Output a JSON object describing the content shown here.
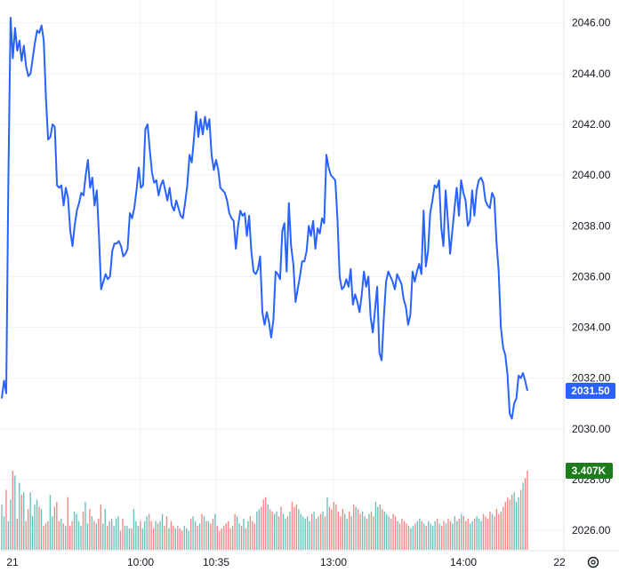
{
  "chart_data": {
    "type": "line",
    "title": "",
    "xlabel": "",
    "ylabel": "",
    "ylim": [
      2025.2,
      2046.9
    ],
    "y_ticks": [
      "2026.00",
      "2028.00",
      "2030.00",
      "2032.00",
      "2034.00",
      "2036.00",
      "2038.00",
      "2040.00",
      "2042.00",
      "2044.00",
      "2046.00"
    ],
    "x_ticks": [
      "21",
      "10:00",
      "10:35",
      "13:00",
      "14:00",
      "22"
    ],
    "grid": true,
    "price_series": {
      "color": "#2962ff",
      "values": [
        2031.2,
        2031.9,
        2031.4,
        2039.8,
        2046.2,
        2044.6,
        2045.8,
        2044.9,
        2045.3,
        2044.5,
        2045.1,
        2044.3,
        2043.9,
        2044.0,
        2044.6,
        2045.2,
        2045.7,
        2045.6,
        2045.9,
        2045.3,
        2043.0,
        2041.4,
        2041.5,
        2042.0,
        2041.9,
        2039.6,
        2039.5,
        2039.6,
        2038.8,
        2039.5,
        2039.1,
        2037.8,
        2037.2,
        2038.0,
        2038.6,
        2038.9,
        2039.3,
        2039.2,
        2040.0,
        2040.6,
        2039.5,
        2039.9,
        2038.8,
        2039.4,
        2037.6,
        2035.5,
        2035.8,
        2036.1,
        2035.9,
        2036.0,
        2037.0,
        2037.3,
        2037.3,
        2037.4,
        2037.2,
        2036.8,
        2036.9,
        2037.1,
        2038.5,
        2038.3,
        2038.7,
        2039.4,
        2040.3,
        2039.5,
        2039.6,
        2041.8,
        2042.0,
        2041.0,
        2040.1,
        2039.7,
        2039.8,
        2039.2,
        2039.6,
        2039.8,
        2039.4,
        2039.0,
        2039.5,
        2038.8,
        2038.6,
        2039.0,
        2038.7,
        2038.4,
        2038.3,
        2038.9,
        2039.6,
        2040.8,
        2040.5,
        2041.4,
        2042.5,
        2041.5,
        2042.2,
        2041.6,
        2042.3,
        2041.8,
        2042.2,
        2040.8,
        2040.2,
        2040.6,
        2040.2,
        2039.5,
        2039.4,
        2039.3,
        2039.0,
        2038.5,
        2038.3,
        2038.2,
        2037.1,
        2038.0,
        2038.6,
        2038.4,
        2038.5,
        2037.6,
        2038.4,
        2037.0,
        2036.2,
        2036.1,
        2036.3,
        2036.8,
        2034.6,
        2034.1,
        2034.6,
        2034.2,
        2033.6,
        2034.3,
        2036.2,
        2036.1,
        2035.9,
        2037.8,
        2038.1,
        2036.2,
        2038.9,
        2037.2,
        2036.5,
        2035.0,
        2035.5,
        2036.0,
        2036.6,
        2036.6,
        2037.0,
        2038.0,
        2037.6,
        2038.2,
        2037.1,
        2037.9,
        2037.7,
        2038.3,
        2038.1,
        2040.8,
        2040.3,
        2040.0,
        2039.9,
        2039.8,
        2038.3,
        2036.0,
        2035.5,
        2035.6,
        2035.9,
        2035.6,
        2036.3,
        2034.9,
        2035.3,
        2035.0,
        2034.6,
        2035.3,
        2036.2,
        2035.6,
        2036.0,
        2034.4,
        2033.8,
        2034.7,
        2035.6,
        2033.0,
        2032.7,
        2034.4,
        2035.8,
        2036.2,
        2036.0,
        2035.8,
        2035.5,
        2036.1,
        2035.9,
        2035.7,
        2035.1,
        2034.8,
        2034.1,
        2034.5,
        2036.2,
        2035.8,
        2036.2,
        2036.5,
        2036.1,
        2038.6,
        2036.4,
        2037.0,
        2038.5,
        2039.0,
        2039.6,
        2039.5,
        2039.8,
        2037.9,
        2037.2,
        2039.4,
        2038.2,
        2036.9,
        2037.8,
        2038.7,
        2039.5,
        2038.4,
        2039.8,
        2039.3,
        2039.0,
        2038.0,
        2038.2,
        2039.4,
        2038.4,
        2039.4,
        2039.8,
        2039.9,
        2039.7,
        2039.0,
        2038.8,
        2038.7,
        2039.3,
        2039.1,
        2037.4,
        2036.2,
        2034.0,
        2033.2,
        2032.9,
        2032.1,
        2030.6,
        2030.4,
        2031.0,
        2031.2,
        2032.1,
        2032.0,
        2032.2,
        2031.9,
        2031.5
      ]
    },
    "volume_series": {
      "up_color": "#26a69a",
      "down_color": "#ef5350",
      "max_label_value": 3407,
      "values": [
        19,
        14,
        25,
        12,
        21,
        33,
        31,
        13,
        28,
        23,
        24,
        12,
        17,
        24,
        14,
        19,
        21,
        18,
        17,
        10,
        11,
        12,
        23,
        14,
        18,
        20,
        12,
        13,
        11,
        10,
        22,
        10,
        12,
        16,
        15,
        12,
        10,
        16,
        20,
        11,
        17,
        14,
        12,
        11,
        13,
        19,
        11,
        17,
        10,
        12,
        13,
        10,
        13,
        14,
        8,
        13,
        10,
        10,
        9,
        9,
        17,
        12,
        10,
        12,
        9,
        12,
        14,
        15,
        12,
        9,
        12,
        11,
        12,
        15,
        10,
        14,
        9,
        12,
        10,
        9,
        10,
        9,
        8,
        10,
        9,
        8,
        13,
        14,
        12,
        10,
        11,
        15,
        14,
        12,
        12,
        11,
        13,
        15,
        10,
        8,
        9,
        10,
        11,
        12,
        9,
        10,
        15,
        14,
        11,
        10,
        13,
        9,
        12,
        14,
        12,
        11,
        16,
        17,
        18,
        21,
        22,
        19,
        17,
        16,
        15,
        16,
        14,
        18,
        15,
        13,
        14,
        16,
        20,
        18,
        19,
        17,
        15,
        14,
        13,
        14,
        12,
        15,
        16,
        13,
        14,
        15,
        16,
        14,
        22,
        18,
        17,
        20,
        19,
        16,
        14,
        17,
        15,
        13,
        16,
        14,
        19,
        18,
        17,
        15,
        16,
        14,
        13,
        15,
        16,
        14,
        20,
        18,
        19,
        17,
        16,
        15,
        14,
        13,
        15,
        14,
        12,
        11,
        13,
        12,
        11,
        10,
        9,
        10,
        11,
        12,
        13,
        12,
        11,
        10,
        12,
        11,
        10,
        12,
        13,
        11,
        10,
        12,
        11,
        13,
        12,
        11,
        14,
        12,
        13,
        15,
        14,
        12,
        13,
        11,
        12,
        13,
        14,
        13,
        12,
        15,
        14,
        13,
        16,
        15,
        14,
        17,
        15,
        16,
        18,
        20,
        22,
        21,
        23,
        24,
        20,
        22,
        25,
        28,
        30,
        33
      ],
      "volume_labels": [
        "3.407K"
      ]
    },
    "last_price_label": "2031.50",
    "last_volume_label": "3.407K"
  },
  "icons": {
    "settings": "settings-icon"
  },
  "colors": {
    "axis_text": "#131722",
    "grid": "#f0f3fa",
    "price_badge": "#2962ff",
    "volume_badge": "#1e7b1e"
  }
}
